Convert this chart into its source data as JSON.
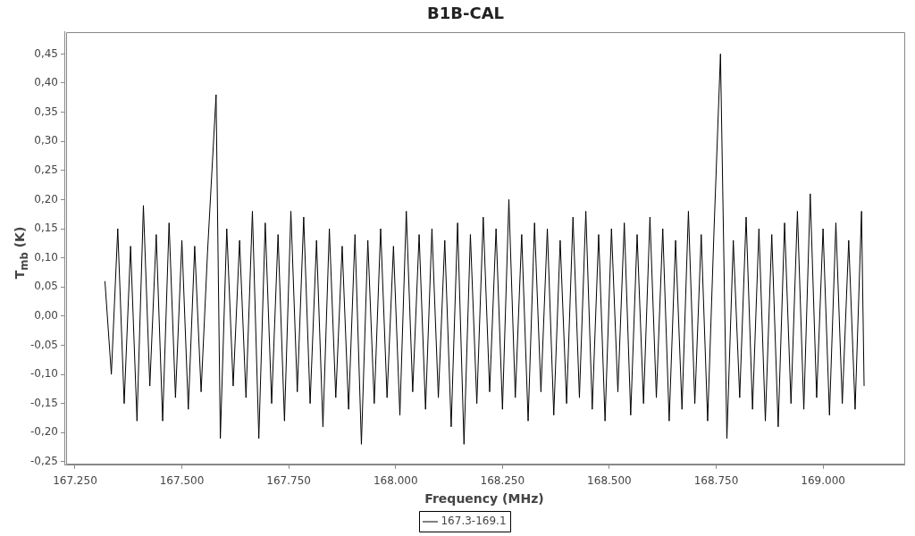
{
  "chart_data": {
    "type": "line",
    "title": "B1B-CAL",
    "xlabel": "Frequency (MHz)",
    "ylabel": "T$_{mb}$ (K)",
    "xlim": [
      167225,
      169190
    ],
    "ylim": [
      -0.256,
      0.488
    ],
    "xticks": [
      {
        "value": 167250,
        "label": "167.250"
      },
      {
        "value": 167500,
        "label": "167.500"
      },
      {
        "value": 167750,
        "label": "167.750"
      },
      {
        "value": 168000,
        "label": "168.000"
      },
      {
        "value": 168250,
        "label": "168.250"
      },
      {
        "value": 168500,
        "label": "168.500"
      },
      {
        "value": 168750,
        "label": "168.750"
      },
      {
        "value": 169000,
        "label": "169.000"
      }
    ],
    "yticks": [
      {
        "value": -0.25,
        "label": "-0,25"
      },
      {
        "value": -0.2,
        "label": "-0,20"
      },
      {
        "value": -0.15,
        "label": "-0,15"
      },
      {
        "value": -0.1,
        "label": "-0,10"
      },
      {
        "value": -0.05,
        "label": "-0,05"
      },
      {
        "value": 0,
        "label": "0,00"
      },
      {
        "value": 0.05,
        "label": "0,05"
      },
      {
        "value": 0.1,
        "label": "0,10"
      },
      {
        "value": 0.15,
        "label": "0,15"
      },
      {
        "value": 0.2,
        "label": "0,20"
      },
      {
        "value": 0.25,
        "label": "0,25"
      },
      {
        "value": 0.3,
        "label": "0,30"
      },
      {
        "value": 0.35,
        "label": "0,35"
      },
      {
        "value": 0.4,
        "label": "0,40"
      },
      {
        "value": 0.45,
        "label": "0,45"
      }
    ],
    "grid": false,
    "legend": "bottom",
    "marker": "none",
    "line_style": "solid",
    "series": [
      {
        "name": "167.3-169.1",
        "color": "#000000",
        "x": [
          167320,
          167335,
          167350,
          167365,
          167380,
          167395,
          167410,
          167425,
          167440,
          167455,
          167470,
          167485,
          167500,
          167515,
          167530,
          167545,
          167560,
          167580,
          167590,
          167605,
          167620,
          167635,
          167650,
          167665,
          167680,
          167695,
          167710,
          167725,
          167740,
          167755,
          167770,
          167785,
          167800,
          167815,
          167830,
          167845,
          167860,
          167875,
          167890,
          167905,
          167920,
          167935,
          167950,
          167965,
          167980,
          167995,
          168010,
          168025,
          168040,
          168055,
          168070,
          168085,
          168100,
          168115,
          168130,
          168145,
          168160,
          168175,
          168190,
          168205,
          168220,
          168235,
          168250,
          168265,
          168280,
          168295,
          168310,
          168325,
          168340,
          168355,
          168370,
          168385,
          168400,
          168415,
          168430,
          168445,
          168460,
          168475,
          168490,
          168505,
          168520,
          168535,
          168550,
          168565,
          168580,
          168595,
          168610,
          168625,
          168640,
          168655,
          168670,
          168685,
          168700,
          168715,
          168730,
          168745,
          168760,
          168775,
          168790,
          168805,
          168820,
          168835,
          168850,
          168865,
          168880,
          168895,
          168910,
          168925,
          168940,
          168955,
          168970,
          168985,
          169000,
          169015,
          169030,
          169045,
          169060,
          169075,
          169090,
          169096
        ],
        "values": [
          0.06,
          -0.1,
          0.15,
          -0.15,
          0.12,
          -0.18,
          0.19,
          -0.12,
          0.14,
          -0.18,
          0.16,
          -0.14,
          0.13,
          -0.16,
          0.12,
          -0.13,
          0.11,
          0.38,
          -0.21,
          0.15,
          -0.12,
          0.13,
          -0.14,
          0.18,
          -0.21,
          0.16,
          -0.15,
          0.14,
          -0.18,
          0.18,
          -0.13,
          0.17,
          -0.15,
          0.13,
          -0.19,
          0.15,
          -0.14,
          0.12,
          -0.16,
          0.14,
          -0.22,
          0.13,
          -0.15,
          0.15,
          -0.14,
          0.12,
          -0.17,
          0.18,
          -0.13,
          0.14,
          -0.16,
          0.15,
          -0.14,
          0.13,
          -0.19,
          0.16,
          -0.22,
          0.14,
          -0.15,
          0.17,
          -0.13,
          0.15,
          -0.16,
          0.2,
          -0.14,
          0.14,
          -0.18,
          0.16,
          -0.13,
          0.15,
          -0.17,
          0.13,
          -0.15,
          0.17,
          -0.14,
          0.18,
          -0.16,
          0.14,
          -0.18,
          0.15,
          -0.13,
          0.16,
          -0.17,
          0.14,
          -0.15,
          0.17,
          -0.14,
          0.15,
          -0.18,
          0.13,
          -0.16,
          0.18,
          -0.15,
          0.14,
          -0.18,
          0.15,
          0.45,
          -0.21,
          0.13,
          -0.14,
          0.17,
          -0.16,
          0.15,
          -0.18,
          0.14,
          -0.19,
          0.16,
          -0.15,
          0.18,
          -0.16,
          0.21,
          -0.14,
          0.15,
          -0.17,
          0.16,
          -0.15,
          0.13,
          -0.16,
          0.18,
          -0.12
        ]
      }
    ]
  }
}
